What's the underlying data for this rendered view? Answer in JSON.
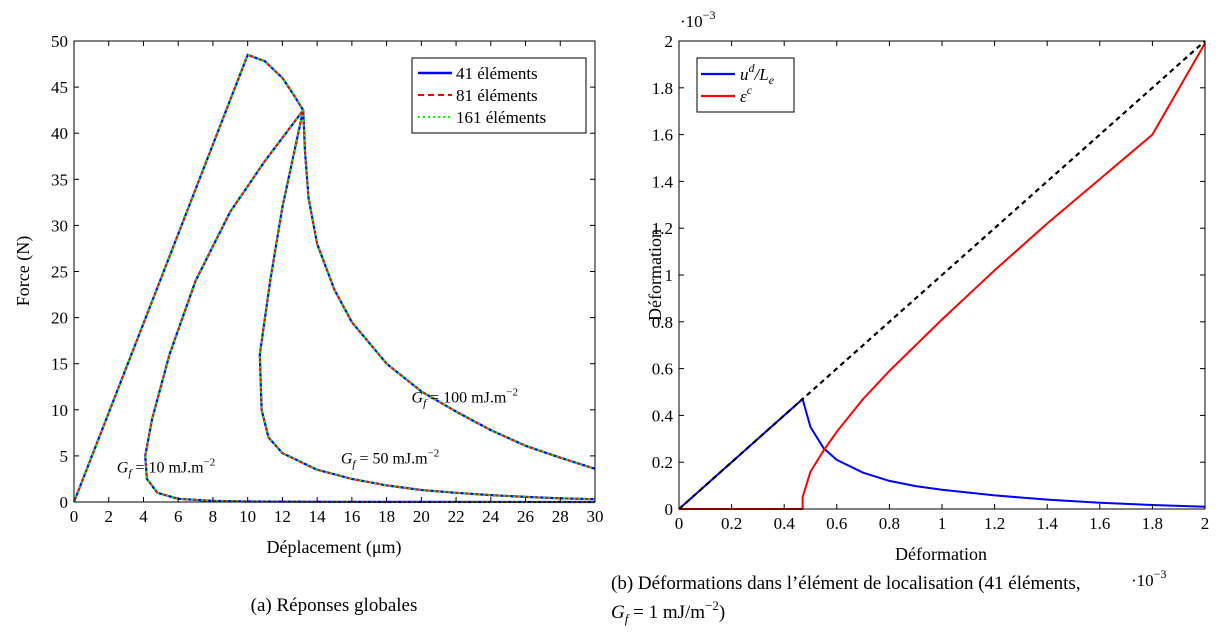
{
  "chart_data": [
    {
      "type": "line",
      "xlabel": "Déplacement (μm)",
      "ylabel": "Force (N)",
      "xlim": [
        0,
        30
      ],
      "ylim": [
        0,
        50
      ],
      "xticks": [
        0,
        2,
        4,
        6,
        8,
        10,
        12,
        14,
        16,
        18,
        20,
        22,
        24,
        26,
        28,
        30
      ],
      "yticks": [
        0,
        5,
        10,
        15,
        20,
        25,
        30,
        35,
        40,
        45,
        50
      ],
      "grid": false,
      "legend_position": "top-right",
      "legend": [
        "41 éléments",
        "81 éléments",
        "161 éléments"
      ],
      "caption": "(a) Réponses globales",
      "colors": {
        "41 éléments": "#0000ff",
        "81 éléments": "#ff0000",
        "161 éléments": "#00ff00"
      },
      "curves": [
        {
          "annotation": "Gf = 100 mJ.m−2",
          "annotation_parts": [
            "G",
            "f",
            " = 100 mJ.m",
            "−2"
          ],
          "points": [
            [
              0,
              0
            ],
            [
              5,
              24.2
            ],
            [
              10,
              48.5
            ],
            [
              11,
              47.8
            ],
            [
              12,
              46
            ],
            [
              12.7,
              44
            ],
            [
              13.2,
              42.5
            ],
            [
              13.3,
              38
            ],
            [
              13.5,
              33
            ],
            [
              14,
              28
            ],
            [
              15,
              23
            ],
            [
              16,
              19.5
            ],
            [
              18,
              15
            ],
            [
              20,
              12
            ],
            [
              22,
              9.8
            ],
            [
              24,
              7.8
            ],
            [
              26,
              6.1
            ],
            [
              28,
              4.8
            ],
            [
              30,
              3.6
            ]
          ]
        },
        {
          "annotation": "Gf = 50 mJ.m−2",
          "annotation_parts": [
            "G",
            "f",
            " = 50 mJ.m",
            "−2"
          ],
          "points": [
            [
              13.2,
              42.5
            ],
            [
              12,
              32
            ],
            [
              11.3,
              24
            ],
            [
              10.7,
              16
            ],
            [
              10.8,
              10
            ],
            [
              11.2,
              7
            ],
            [
              12,
              5.3
            ],
            [
              14,
              3.5
            ],
            [
              16,
              2.5
            ],
            [
              18,
              1.8
            ],
            [
              20,
              1.3
            ],
            [
              22,
              1
            ],
            [
              24,
              0.75
            ],
            [
              26,
              0.55
            ],
            [
              28,
              0.4
            ],
            [
              30,
              0.3
            ]
          ]
        },
        {
          "annotation": "Gf = 10 mJ.m−2",
          "annotation_parts": [
            "G",
            "f",
            " = 10 mJ.m",
            "−2"
          ],
          "points": [
            [
              13.2,
              42.5
            ],
            [
              11,
              37
            ],
            [
              9,
              31.5
            ],
            [
              7,
              24
            ],
            [
              5.5,
              16
            ],
            [
              4.5,
              9
            ],
            [
              4.1,
              5
            ],
            [
              4.2,
              2.5
            ],
            [
              4.8,
              1
            ],
            [
              6,
              0.35
            ],
            [
              8,
              0.12
            ],
            [
              10,
              0.05
            ],
            [
              15,
              0.02
            ],
            [
              20,
              0.01
            ],
            [
              30,
              0
            ]
          ]
        }
      ]
    },
    {
      "type": "line",
      "xlabel": "Déformation",
      "ylabel": "Déformation",
      "xlim": [
        0,
        2
      ],
      "ylim": [
        0,
        2
      ],
      "xticks": [
        0,
        0.2,
        0.4,
        0.6,
        0.8,
        1,
        1.2,
        1.4,
        1.6,
        1.8,
        2
      ],
      "yticks": [
        0,
        0.2,
        0.4,
        0.6,
        0.8,
        1,
        1.2,
        1.4,
        1.6,
        1.8,
        2
      ],
      "x_multiplier": "·10−3",
      "y_multiplier": "·10−3",
      "grid": false,
      "legend_position": "top-left",
      "legend": [
        "ud/Le",
        "εc"
      ],
      "caption_line1": "(b) Déformations dans l’élément de localisation (41 éléments,",
      "caption_line2": "Gf = 1 mJ/m−2)",
      "colors": {
        "ud/Le": "#0000ff",
        "εc": "#ff0000",
        "reference": "#000000"
      },
      "series": [
        {
          "name": "ud/Le",
          "points": [
            [
              0,
              0
            ],
            [
              0.47,
              0.47
            ],
            [
              0.48,
              0.43
            ],
            [
              0.5,
              0.35
            ],
            [
              0.55,
              0.26
            ],
            [
              0.6,
              0.21
            ],
            [
              0.7,
              0.155
            ],
            [
              0.8,
              0.12
            ],
            [
              0.9,
              0.098
            ],
            [
              1,
              0.082
            ],
            [
              1.2,
              0.058
            ],
            [
              1.4,
              0.04
            ],
            [
              1.6,
              0.027
            ],
            [
              1.8,
              0.017
            ],
            [
              2,
              0.01
            ]
          ]
        },
        {
          "name": "εc",
          "points": [
            [
              0,
              0
            ],
            [
              0.47,
              0
            ],
            [
              0.47,
              0.05
            ],
            [
              0.5,
              0.16
            ],
            [
              0.55,
              0.25
            ],
            [
              0.6,
              0.33
            ],
            [
              0.7,
              0.47
            ],
            [
              0.8,
              0.59
            ],
            [
              1,
              0.81
            ],
            [
              1.2,
              1.02
            ],
            [
              1.4,
              1.22
            ],
            [
              1.6,
              1.41
            ],
            [
              1.8,
              1.6
            ],
            [
              2,
              1.99
            ]
          ]
        },
        {
          "name": "reference",
          "dashed": true,
          "points": [
            [
              0,
              0
            ],
            [
              2,
              2
            ]
          ]
        }
      ]
    }
  ]
}
